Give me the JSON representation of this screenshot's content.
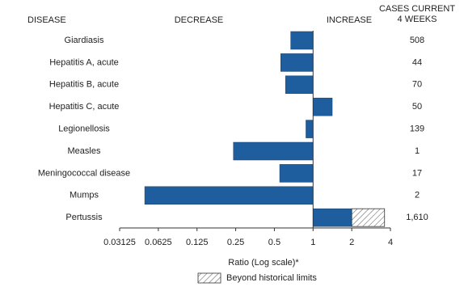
{
  "chart_data": {
    "type": "bar",
    "orientation": "horizontal",
    "headers": {
      "disease": "DISEASE",
      "decrease": "DECREASE",
      "increase": "INCREASE",
      "cases": [
        "CASES CURRENT",
        "4 WEEKS"
      ]
    },
    "categories": [
      "Giardiasis",
      "Hepatitis A, acute",
      "Hepatitis B, acute",
      "Hepatitis C, acute",
      "Legionellosis",
      "Measles",
      "Meningococcal disease",
      "Mumps",
      "Pertussis"
    ],
    "values": [
      0.67,
      0.56,
      0.61,
      1.41,
      0.88,
      0.24,
      0.55,
      0.049,
      3.6
    ],
    "historical_limits": [
      null,
      null,
      null,
      null,
      null,
      null,
      null,
      null,
      2.0
    ],
    "cases": [
      "508",
      "44",
      "70",
      "50",
      "139",
      "1",
      "17",
      "2",
      "1,610"
    ],
    "color": "#1f5e9e",
    "xlim": [
      0.03125,
      4
    ],
    "xticks": [
      0.03125,
      0.0625,
      0.125,
      0.25,
      0.5,
      1,
      2,
      4
    ],
    "xscale": "log2",
    "baseline": 1,
    "xlabel": "Ratio (Log scale)*",
    "legend": "Beyond historical limits"
  }
}
